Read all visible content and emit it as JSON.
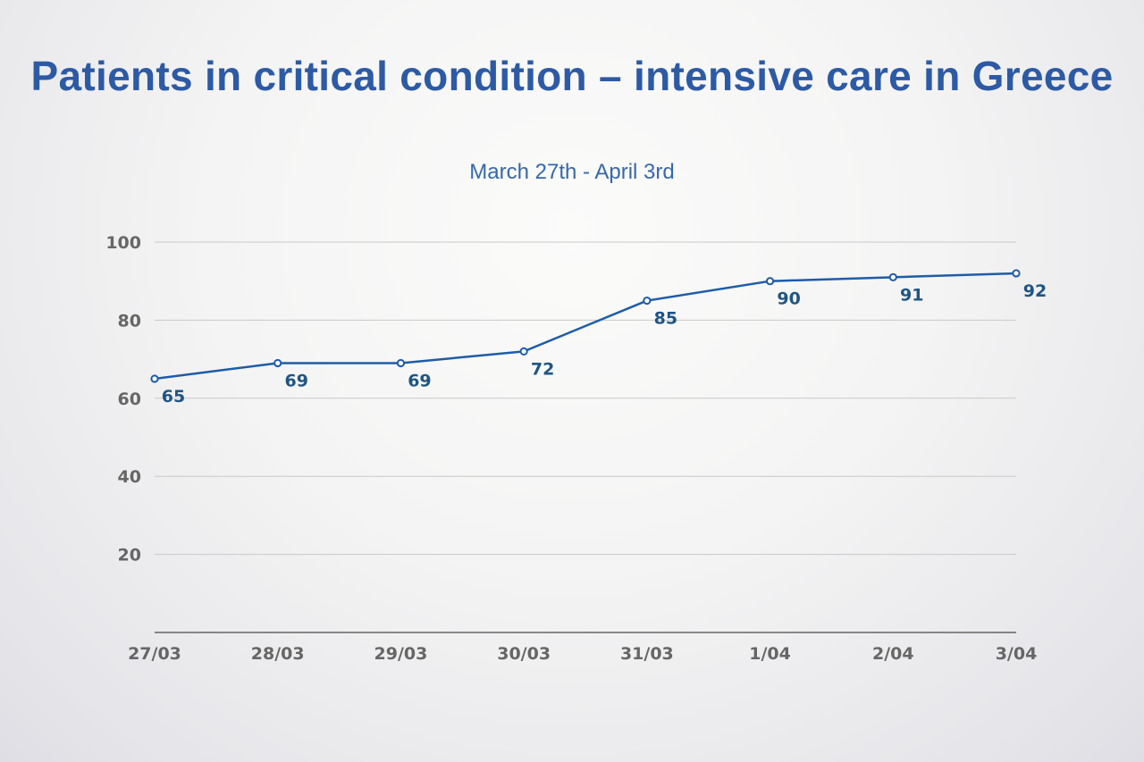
{
  "chart_data": {
    "type": "line",
    "title": "Patients in critical condition – intensive care in Greece",
    "subtitle": "March 27th - April 3rd",
    "xlabel": "",
    "ylabel": "",
    "categories": [
      "27/03",
      "28/03",
      "29/03",
      "30/03",
      "31/03",
      "1/04",
      "2/04",
      "3/04"
    ],
    "series": [
      {
        "values": [
          65,
          69,
          69,
          72,
          85,
          90,
          91,
          92
        ]
      }
    ],
    "ylim": [
      0,
      100
    ],
    "yticks": [
      20,
      40,
      60,
      80,
      100
    ],
    "grid": true,
    "data_labels": true,
    "line_color": "#1e5ca8",
    "label_color": "#1f5584"
  }
}
